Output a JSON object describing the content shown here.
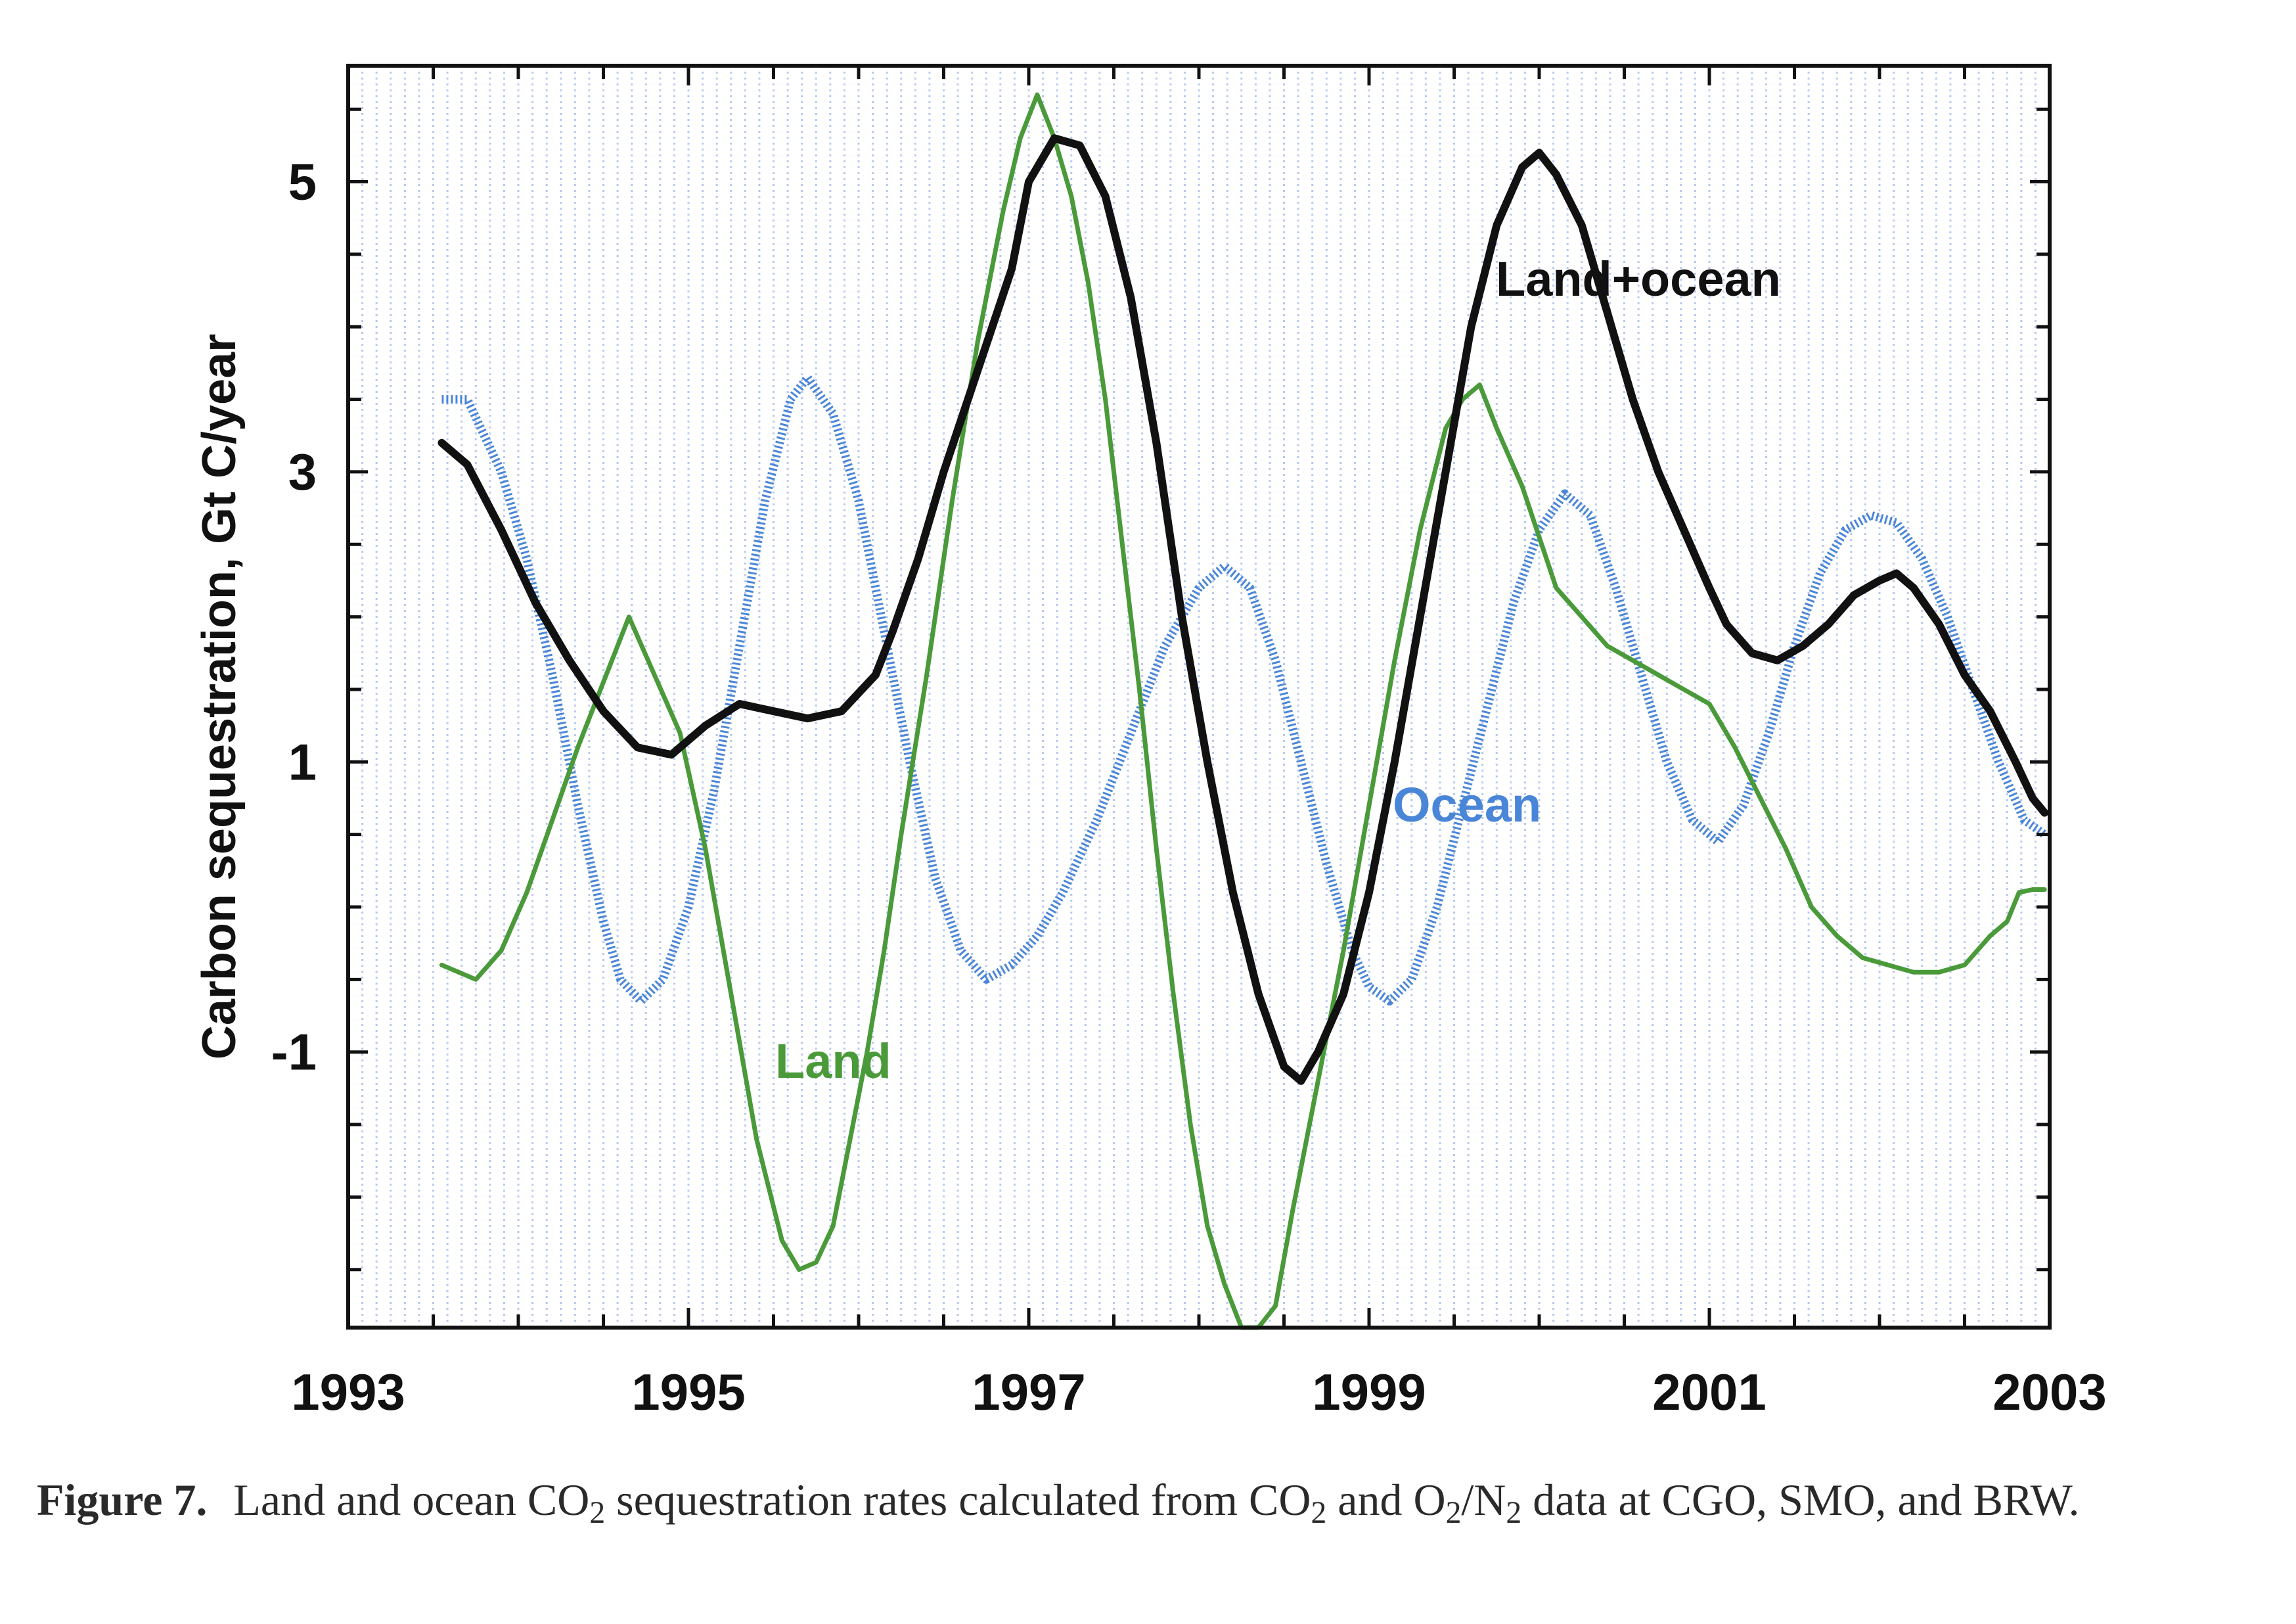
{
  "chart_data": {
    "type": "line",
    "title": "",
    "xlabel": "",
    "ylabel": "Carbon sequestration, Gt C/year",
    "xlim": [
      1993,
      2003
    ],
    "ylim": [
      -2.9,
      5.8
    ],
    "x_ticks": [
      1993,
      1995,
      1997,
      1999,
      2001,
      2003
    ],
    "x_tick_labels": [
      "1993",
      "1995",
      "1997",
      "1999",
      "2001",
      "2003"
    ],
    "y_ticks": [
      -1,
      1,
      3,
      5
    ],
    "y_tick_labels": [
      "-1",
      "1",
      "3",
      "5"
    ],
    "grid": "vertical dotted lines",
    "legend": "inline labels next to curves",
    "series": [
      {
        "name": "Land+ocean",
        "label": "Land+ocean",
        "color": "#111111",
        "style": "solid-thick",
        "points": [
          [
            1993.55,
            3.2
          ],
          [
            1993.7,
            3.05
          ],
          [
            1993.9,
            2.6
          ],
          [
            1994.1,
            2.1
          ],
          [
            1994.3,
            1.7
          ],
          [
            1994.5,
            1.35
          ],
          [
            1994.7,
            1.1
          ],
          [
            1994.9,
            1.05
          ],
          [
            1995.1,
            1.25
          ],
          [
            1995.3,
            1.4
          ],
          [
            1995.5,
            1.35
          ],
          [
            1995.7,
            1.3
          ],
          [
            1995.9,
            1.35
          ],
          [
            1996.1,
            1.6
          ],
          [
            1996.2,
            1.9
          ],
          [
            1996.35,
            2.4
          ],
          [
            1996.5,
            3.0
          ],
          [
            1996.7,
            3.7
          ],
          [
            1996.9,
            4.4
          ],
          [
            1997.0,
            5.0
          ],
          [
            1997.15,
            5.3
          ],
          [
            1997.3,
            5.25
          ],
          [
            1997.45,
            4.9
          ],
          [
            1997.6,
            4.2
          ],
          [
            1997.75,
            3.2
          ],
          [
            1997.9,
            2.0
          ],
          [
            1998.05,
            1.0
          ],
          [
            1998.2,
            0.1
          ],
          [
            1998.35,
            -0.6
          ],
          [
            1998.5,
            -1.1
          ],
          [
            1998.6,
            -1.2
          ],
          [
            1998.7,
            -1.0
          ],
          [
            1998.85,
            -0.6
          ],
          [
            1999.0,
            0.1
          ],
          [
            1999.15,
            1.0
          ],
          [
            1999.3,
            2.0
          ],
          [
            1999.45,
            3.0
          ],
          [
            1999.6,
            4.0
          ],
          [
            1999.75,
            4.7
          ],
          [
            1999.9,
            5.1
          ],
          [
            2000.0,
            5.2
          ],
          [
            2000.1,
            5.05
          ],
          [
            2000.25,
            4.7
          ],
          [
            2000.4,
            4.1
          ],
          [
            2000.55,
            3.5
          ],
          [
            2000.7,
            3.0
          ],
          [
            2000.85,
            2.6
          ],
          [
            2001.0,
            2.2
          ],
          [
            2001.1,
            1.95
          ],
          [
            2001.25,
            1.75
          ],
          [
            2001.4,
            1.7
          ],
          [
            2001.55,
            1.8
          ],
          [
            2001.7,
            1.95
          ],
          [
            2001.85,
            2.15
          ],
          [
            2002.0,
            2.25
          ],
          [
            2002.1,
            2.3
          ],
          [
            2002.2,
            2.2
          ],
          [
            2002.35,
            1.95
          ],
          [
            2002.5,
            1.6
          ],
          [
            2002.65,
            1.35
          ],
          [
            2002.8,
            1.0
          ],
          [
            2002.9,
            0.75
          ],
          [
            2002.97,
            0.65
          ]
        ]
      },
      {
        "name": "Land",
        "label": "Land",
        "color": "#4a9a3a",
        "style": "solid",
        "points": [
          [
            1993.55,
            -0.4
          ],
          [
            1993.75,
            -0.5
          ],
          [
            1993.9,
            -0.3
          ],
          [
            1994.05,
            0.1
          ],
          [
            1994.2,
            0.6
          ],
          [
            1994.35,
            1.1
          ],
          [
            1994.5,
            1.55
          ],
          [
            1994.65,
            2.0
          ],
          [
            1994.8,
            1.6
          ],
          [
            1994.95,
            1.2
          ],
          [
            1995.1,
            0.4
          ],
          [
            1995.25,
            -0.6
          ],
          [
            1995.4,
            -1.6
          ],
          [
            1995.55,
            -2.3
          ],
          [
            1995.65,
            -2.5
          ],
          [
            1995.75,
            -2.45
          ],
          [
            1995.85,
            -2.2
          ],
          [
            1995.95,
            -1.6
          ],
          [
            1996.05,
            -1.0
          ],
          [
            1996.15,
            -0.3
          ],
          [
            1996.25,
            0.5
          ],
          [
            1996.4,
            1.6
          ],
          [
            1996.55,
            2.8
          ],
          [
            1996.7,
            3.9
          ],
          [
            1996.85,
            4.8
          ],
          [
            1996.95,
            5.3
          ],
          [
            1997.05,
            5.6
          ],
          [
            1997.15,
            5.3
          ],
          [
            1997.25,
            4.9
          ],
          [
            1997.35,
            4.3
          ],
          [
            1997.45,
            3.5
          ],
          [
            1997.55,
            2.5
          ],
          [
            1997.65,
            1.5
          ],
          [
            1997.75,
            0.4
          ],
          [
            1997.85,
            -0.6
          ],
          [
            1997.95,
            -1.5
          ],
          [
            1998.05,
            -2.2
          ],
          [
            1998.15,
            -2.6
          ],
          [
            1998.25,
            -2.9
          ],
          [
            1998.35,
            -2.9
          ],
          [
            1998.45,
            -2.75
          ],
          [
            1998.55,
            -2.1
          ],
          [
            1998.7,
            -1.2
          ],
          [
            1998.85,
            -0.3
          ],
          [
            1999.0,
            0.7
          ],
          [
            1999.15,
            1.7
          ],
          [
            1999.3,
            2.6
          ],
          [
            1999.45,
            3.3
          ],
          [
            1999.55,
            3.5
          ],
          [
            1999.65,
            3.6
          ],
          [
            1999.75,
            3.3
          ],
          [
            1999.9,
            2.9
          ],
          [
            2000.0,
            2.55
          ],
          [
            2000.1,
            2.2
          ],
          [
            2000.25,
            2.0
          ],
          [
            2000.4,
            1.8
          ],
          [
            2000.55,
            1.7
          ],
          [
            2000.7,
            1.6
          ],
          [
            2000.85,
            1.5
          ],
          [
            2001.0,
            1.4
          ],
          [
            2001.15,
            1.1
          ],
          [
            2001.3,
            0.75
          ],
          [
            2001.45,
            0.4
          ],
          [
            2001.6,
            0.0
          ],
          [
            2001.75,
            -0.2
          ],
          [
            2001.9,
            -0.35
          ],
          [
            2002.05,
            -0.4
          ],
          [
            2002.2,
            -0.45
          ],
          [
            2002.35,
            -0.45
          ],
          [
            2002.5,
            -0.4
          ],
          [
            2002.65,
            -0.2
          ],
          [
            2002.75,
            -0.1
          ],
          [
            2002.82,
            0.1
          ],
          [
            2002.9,
            0.12
          ],
          [
            2002.97,
            0.12
          ]
        ]
      },
      {
        "name": "Ocean",
        "label": "Ocean",
        "color": "#4a86d8",
        "style": "dotted",
        "points": [
          [
            1993.55,
            3.5
          ],
          [
            1993.7,
            3.5
          ],
          [
            1993.9,
            3.0
          ],
          [
            1994.05,
            2.4
          ],
          [
            1994.2,
            1.6
          ],
          [
            1994.35,
            0.7
          ],
          [
            1994.5,
            -0.1
          ],
          [
            1994.6,
            -0.5
          ],
          [
            1994.72,
            -0.65
          ],
          [
            1994.85,
            -0.5
          ],
          [
            1995.0,
            0.0
          ],
          [
            1995.15,
            0.8
          ],
          [
            1995.3,
            1.8
          ],
          [
            1995.45,
            2.8
          ],
          [
            1995.6,
            3.5
          ],
          [
            1995.7,
            3.65
          ],
          [
            1995.85,
            3.4
          ],
          [
            1996.0,
            2.8
          ],
          [
            1996.15,
            1.9
          ],
          [
            1996.3,
            1.0
          ],
          [
            1996.45,
            0.2
          ],
          [
            1996.6,
            -0.3
          ],
          [
            1996.75,
            -0.5
          ],
          [
            1996.9,
            -0.4
          ],
          [
            1997.05,
            -0.2
          ],
          [
            1997.2,
            0.1
          ],
          [
            1997.4,
            0.6
          ],
          [
            1997.6,
            1.2
          ],
          [
            1997.8,
            1.8
          ],
          [
            1998.0,
            2.2
          ],
          [
            1998.15,
            2.35
          ],
          [
            1998.3,
            2.2
          ],
          [
            1998.45,
            1.7
          ],
          [
            1998.6,
            1.0
          ],
          [
            1998.75,
            0.3
          ],
          [
            1998.9,
            -0.3
          ],
          [
            1999.0,
            -0.55
          ],
          [
            1999.12,
            -0.65
          ],
          [
            1999.25,
            -0.5
          ],
          [
            1999.4,
            0.0
          ],
          [
            1999.55,
            0.7
          ],
          [
            1999.7,
            1.4
          ],
          [
            1999.85,
            2.1
          ],
          [
            2000.0,
            2.6
          ],
          [
            2000.15,
            2.85
          ],
          [
            2000.3,
            2.7
          ],
          [
            2000.45,
            2.2
          ],
          [
            2000.6,
            1.6
          ],
          [
            2000.75,
            1.0
          ],
          [
            2000.9,
            0.6
          ],
          [
            2001.05,
            0.45
          ],
          [
            2001.2,
            0.7
          ],
          [
            2001.35,
            1.2
          ],
          [
            2001.5,
            1.8
          ],
          [
            2001.65,
            2.3
          ],
          [
            2001.8,
            2.6
          ],
          [
            2001.95,
            2.7
          ],
          [
            2002.1,
            2.65
          ],
          [
            2002.25,
            2.4
          ],
          [
            2002.4,
            2.0
          ],
          [
            2002.55,
            1.5
          ],
          [
            2002.7,
            1.0
          ],
          [
            2002.85,
            0.6
          ],
          [
            2002.97,
            0.5
          ]
        ]
      }
    ]
  },
  "caption": {
    "figure_number": "Figure 7.",
    "text_1": "Land and ocean CO",
    "sub_1": "2",
    "text_2": " sequestration rates calculated from CO",
    "sub_2": "2",
    "text_3": " and O",
    "sub_3": "2",
    "text_4": "/N",
    "sub_4": "2",
    "text_5": " data at CGO, SMO, and BRW."
  }
}
